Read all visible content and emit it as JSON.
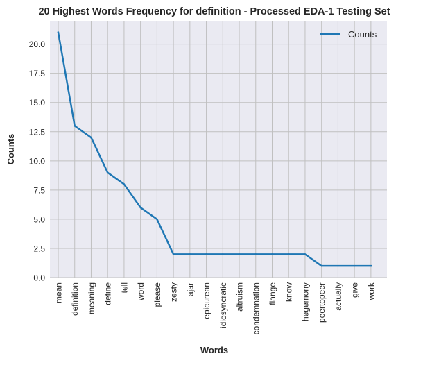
{
  "chart_data": {
    "type": "line",
    "title": "20 Highest Words Frequency for definition - Processed EDA-1 Testing Set",
    "xlabel": "Words",
    "ylabel": "Counts",
    "categories": [
      "mean",
      "definition",
      "meaning",
      "define",
      "tell",
      "word",
      "please",
      "zesty",
      "ajar",
      "epicurean",
      "idiosyncratic",
      "altruism",
      "condemnation",
      "flange",
      "know",
      "hegemony",
      "peertopeer",
      "actually",
      "give",
      "work"
    ],
    "series": [
      {
        "name": "Counts",
        "values": [
          21,
          13,
          12,
          9,
          8,
          6,
          5,
          2,
          2,
          2,
          2,
          2,
          2,
          2,
          2,
          2,
          1,
          1,
          1,
          1
        ]
      }
    ],
    "ylim": [
      0,
      22
    ],
    "yticks": [
      "0.0",
      "2.5",
      "5.0",
      "7.5",
      "10.0",
      "12.5",
      "15.0",
      "17.5",
      "20.0"
    ],
    "grid": true,
    "legend_position": "top-right",
    "colors": {
      "line": "#1f77b4",
      "plot_background": "#eaeaf2",
      "grid": "#c0c0c0",
      "text": "#262626"
    }
  }
}
